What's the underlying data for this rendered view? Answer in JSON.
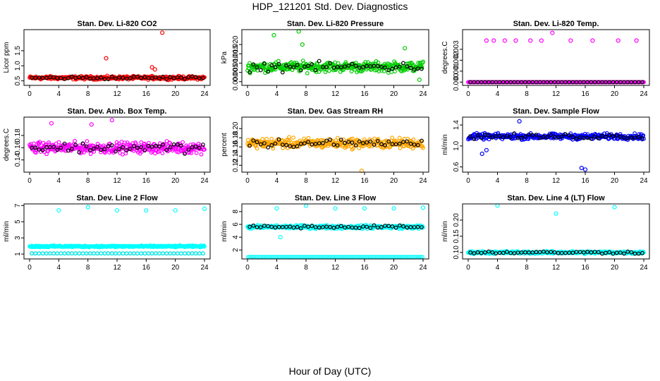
{
  "title": "HDP_121201  Std. Dev. Diagnostics",
  "xlabel": "Hour of Day (UTC)",
  "chart_data": [
    {
      "type": "scatter",
      "title": "Stan. Dev. Li-820 CO2",
      "ylabel": "Licor ppm",
      "xlim": [
        0,
        24
      ],
      "xticks": [
        0,
        4,
        8,
        12,
        16,
        20,
        24
      ],
      "ylim": [
        0.35,
        2.2
      ],
      "yticks": [
        0.5,
        1.0,
        1.5
      ],
      "ytick_labels": [
        "0.5",
        "1.0",
        "1.5"
      ],
      "color": "#ff0000",
      "base": 0.6,
      "spread": 0.08,
      "outliers": [
        {
          "x": 18.2,
          "y": 2.1
        },
        {
          "x": 10.5,
          "y": 1.25
        },
        {
          "x": 16.8,
          "y": 0.95
        },
        {
          "x": 17.2,
          "y": 0.88
        }
      ]
    },
    {
      "type": "scatter",
      "title": "Stan. Dev. Li-820 Pressure",
      "ylabel": "kPa",
      "xlim": [
        0,
        24
      ],
      "xticks": [
        0,
        4,
        8,
        12,
        16,
        20,
        24
      ],
      "ylim": [
        -0.002,
        0.028
      ],
      "yticks": [
        0.0,
        0.005,
        0.01,
        0.015,
        0.02
      ],
      "ytick_labels": [
        "0.000",
        "0.005",
        "0.010",
        "0.015",
        "0.020"
      ],
      "color": "#00cc00",
      "base": 0.008,
      "spread": 0.004,
      "outliers": [
        {
          "x": 3.6,
          "y": 0.025
        },
        {
          "x": 7.0,
          "y": 0.027
        },
        {
          "x": 7.5,
          "y": 0.02
        },
        {
          "x": 21.5,
          "y": 0.018
        },
        {
          "x": 23.5,
          "y": 0.001
        }
      ]
    },
    {
      "type": "scatter",
      "title": "Stan. Dev. Li-820 Temp.",
      "ylabel": "degrees.C",
      "xlim": [
        0,
        24
      ],
      "xticks": [
        0,
        4,
        8,
        12,
        16,
        20,
        24
      ],
      "ylim": [
        -0.0003,
        0.0048
      ],
      "yticks": [
        0.0,
        0.001,
        0.002,
        0.003
      ],
      "ytick_labels": [
        "0.000",
        "0.001",
        "0.002",
        "0.003"
      ],
      "color": "#ff00ff",
      "base": 0.0,
      "spread": 0.0,
      "outliers": [
        {
          "x": 2.5,
          "y": 0.0038
        },
        {
          "x": 3.5,
          "y": 0.0038
        },
        {
          "x": 5.0,
          "y": 0.0038
        },
        {
          "x": 6.5,
          "y": 0.0038
        },
        {
          "x": 8.5,
          "y": 0.0038
        },
        {
          "x": 10.0,
          "y": 0.0038
        },
        {
          "x": 11.5,
          "y": 0.0045
        },
        {
          "x": 14.0,
          "y": 0.0038
        },
        {
          "x": 17.0,
          "y": 0.0038
        },
        {
          "x": 20.5,
          "y": 0.0038
        },
        {
          "x": 23.0,
          "y": 0.0038
        }
      ]
    },
    {
      "type": "scatter",
      "title": "Stan. Dev. Amb. Box Temp.",
      "ylabel": "degrees.C",
      "xlim": [
        0,
        24
      ],
      "xticks": [
        0,
        4,
        8,
        12,
        16,
        20,
        24
      ],
      "ylim": [
        0.12,
        0.21
      ],
      "yticks": [
        0.14,
        0.16,
        0.18
      ],
      "ytick_labels": [
        "0.14",
        "0.16",
        "0.18"
      ],
      "color": "#ff00ff",
      "base": 0.16,
      "spread": 0.013,
      "outliers": [
        {
          "x": 11.3,
          "y": 0.205
        },
        {
          "x": 3.0,
          "y": 0.2
        },
        {
          "x": 8.5,
          "y": 0.198
        }
      ]
    },
    {
      "type": "scatter",
      "title": "Stan. Dev. Gas Stream RH",
      "ylabel": "percent",
      "xlim": [
        0,
        24
      ],
      "xticks": [
        0,
        4,
        8,
        12,
        16,
        20,
        24
      ],
      "ylim": [
        0.105,
        0.225
      ],
      "yticks": [
        0.12,
        0.14,
        0.16,
        0.18,
        0.2
      ],
      "ytick_labels": [
        "0.12",
        "0.14",
        "0.16",
        "0.18",
        "0.20"
      ],
      "color": "#ffa500",
      "base": 0.168,
      "spread": 0.016,
      "outliers": [
        {
          "x": 15.6,
          "y": 0.108
        }
      ]
    },
    {
      "type": "scatter",
      "title": "Stan. Dev. Sample Flow",
      "ylabel": "ml/min",
      "xlim": [
        0,
        24
      ],
      "xticks": [
        0,
        4,
        8,
        12,
        16,
        20,
        24
      ],
      "ylim": [
        0.5,
        1.55
      ],
      "yticks": [
        0.6,
        1.0,
        1.4
      ],
      "ytick_labels": [
        "0.6",
        "1.0",
        "1.4"
      ],
      "color": "#0000ff",
      "base": 1.18,
      "spread": 0.08,
      "outliers": [
        {
          "x": 15.5,
          "y": 0.58
        },
        {
          "x": 16.0,
          "y": 0.55
        },
        {
          "x": 1.9,
          "y": 0.85
        },
        {
          "x": 2.5,
          "y": 0.92
        },
        {
          "x": 7.0,
          "y": 1.47
        }
      ]
    },
    {
      "type": "scatter",
      "title": "Stan. Dev. Line 2 Flow",
      "ylabel": "ml/min",
      "xlim": [
        0,
        24
      ],
      "xticks": [
        0,
        4,
        8,
        12,
        16,
        20,
        24
      ],
      "ylim": [
        0.4,
        7.2
      ],
      "yticks": [
        1,
        3,
        5,
        7
      ],
      "ytick_labels": [
        "1",
        "3",
        "5",
        "7"
      ],
      "color": "#00ffff",
      "base": 1.95,
      "spread": 0.15,
      "outliers": [
        {
          "x": 4.0,
          "y": 6.4
        },
        {
          "x": 8.0,
          "y": 6.8
        },
        {
          "x": 12.0,
          "y": 6.4
        },
        {
          "x": 16.0,
          "y": 6.4
        },
        {
          "x": 20.0,
          "y": 6.4
        },
        {
          "x": 24.0,
          "y": 6.6
        }
      ]
    },
    {
      "type": "scatter",
      "title": "Stan. Dev. Line 3 Flow",
      "ylabel": "ml/min",
      "xlim": [
        0,
        24
      ],
      "xticks": [
        0,
        4,
        8,
        12,
        16,
        20,
        24
      ],
      "ylim": [
        0.6,
        9.2
      ],
      "yticks": [
        2,
        4,
        6,
        8
      ],
      "ytick_labels": [
        "2",
        "4",
        "6",
        "8"
      ],
      "color": "#00ffff",
      "base": 5.6,
      "spread": 0.4,
      "outliers": [
        {
          "x": 4.0,
          "y": 8.5
        },
        {
          "x": 8.0,
          "y": 8.9
        },
        {
          "x": 12.0,
          "y": 8.5
        },
        {
          "x": 16.0,
          "y": 8.5
        },
        {
          "x": 20.0,
          "y": 8.5
        },
        {
          "x": 24.0,
          "y": 8.6
        },
        {
          "x": 4.5,
          "y": 4.0
        }
      ]
    },
    {
      "type": "scatter",
      "title": "Stan. Dev. Line 4 (LT) Flow",
      "ylabel": "ml/min",
      "xlim": [
        0,
        24
      ],
      "xticks": [
        0,
        4,
        8,
        12,
        16,
        20,
        24
      ],
      "ylim": [
        0.08,
        0.25
      ],
      "yticks": [
        0.1,
        0.15,
        0.2
      ],
      "ytick_labels": [
        "0.10",
        "0.15",
        "0.20"
      ],
      "color": "#00ffff",
      "base": 0.1,
      "spread": 0.006,
      "outliers": [
        {
          "x": 4.0,
          "y": 0.245
        },
        {
          "x": 12.0,
          "y": 0.22
        },
        {
          "x": 20.0,
          "y": 0.24
        }
      ]
    }
  ]
}
